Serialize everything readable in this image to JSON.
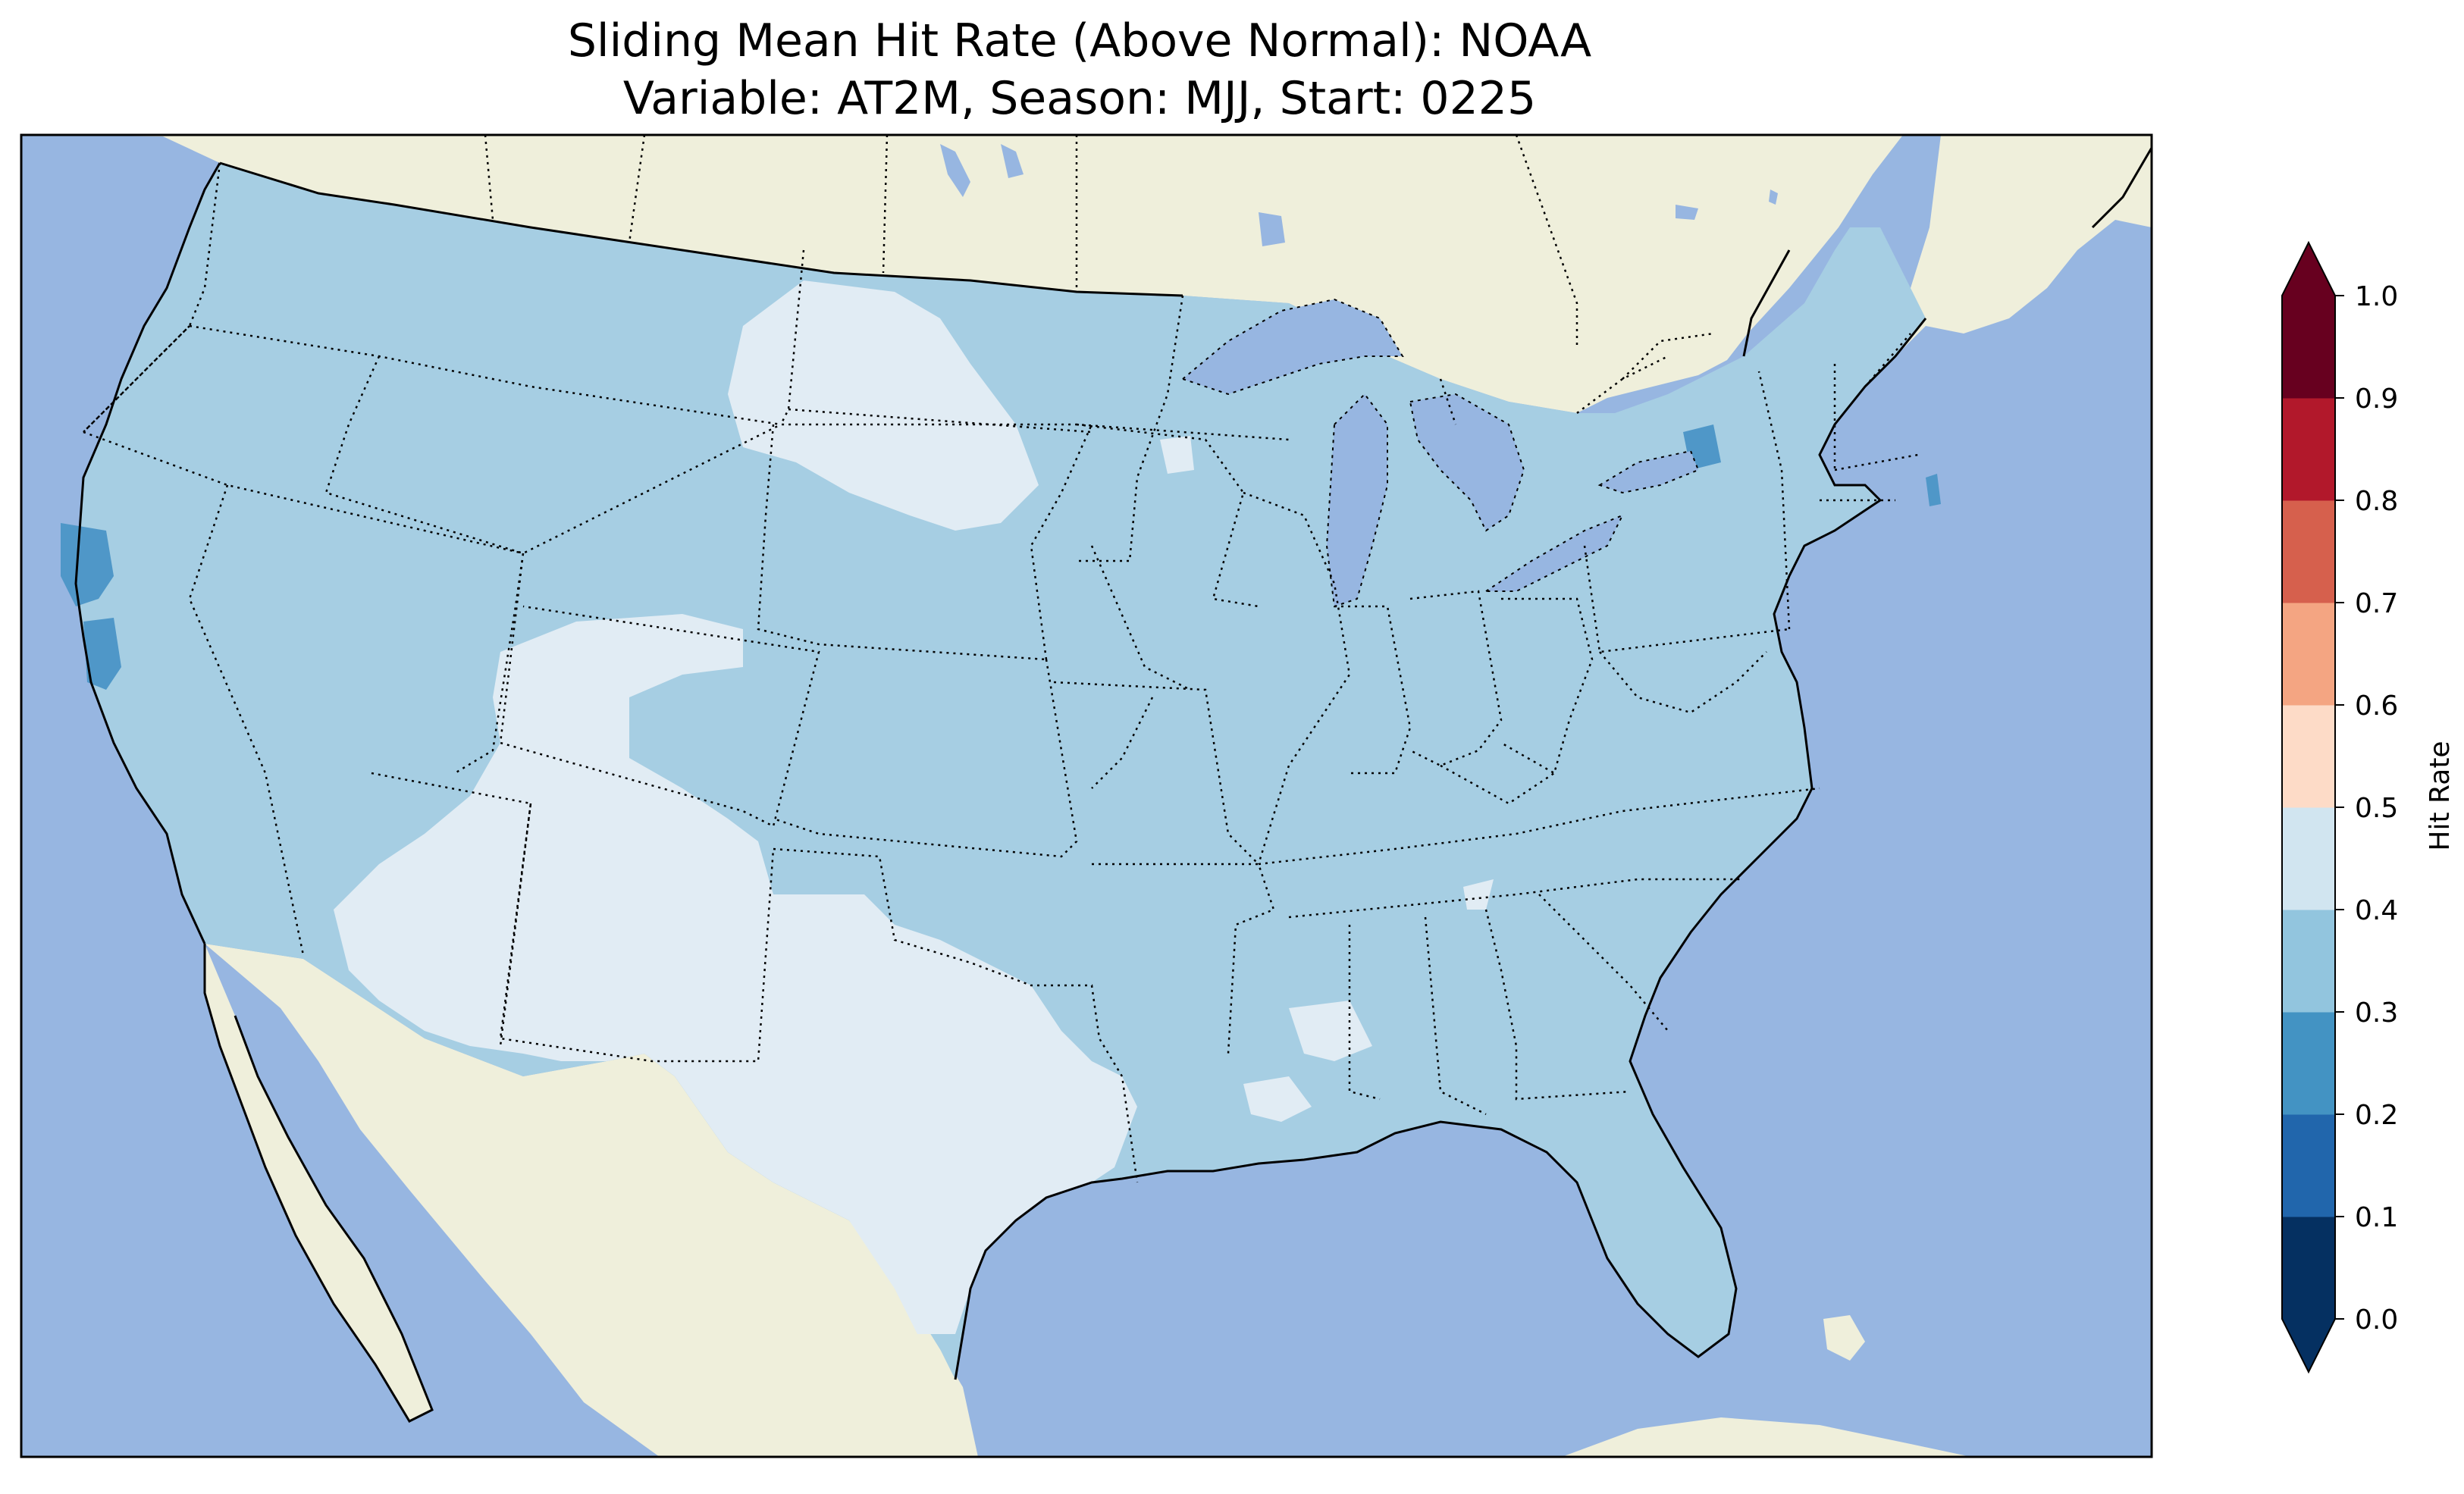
{
  "title": {
    "line1": "Sliding Mean Hit Rate (Above Normal): NOAA",
    "line2": "Variable: AT2M, Season: MJJ, Start: 0225"
  },
  "colorbar": {
    "label": "Hit Rate",
    "ticks": [
      "0.0",
      "0.1",
      "0.2",
      "0.3",
      "0.4",
      "0.5",
      "0.6",
      "0.7",
      "0.8",
      "0.9",
      "1.0"
    ],
    "colors": [
      "#053061",
      "#2166ac",
      "#4393c3",
      "#92c5de",
      "#d1e5f0",
      "#fddbc7",
      "#f4a582",
      "#d6604d",
      "#b2182b",
      "#67001f"
    ],
    "under_color": "#053061",
    "over_color": "#67001f",
    "extend": "both"
  },
  "map": {
    "ocean_color": "#97b6e1",
    "land_color": "#efefdb",
    "dominant_hit_rate_band": "0.3-0.4",
    "dominant_color": "#a6cee3",
    "high_band_color": "#e1ecf4",
    "low_band_color": "#4f97c8"
  }
}
